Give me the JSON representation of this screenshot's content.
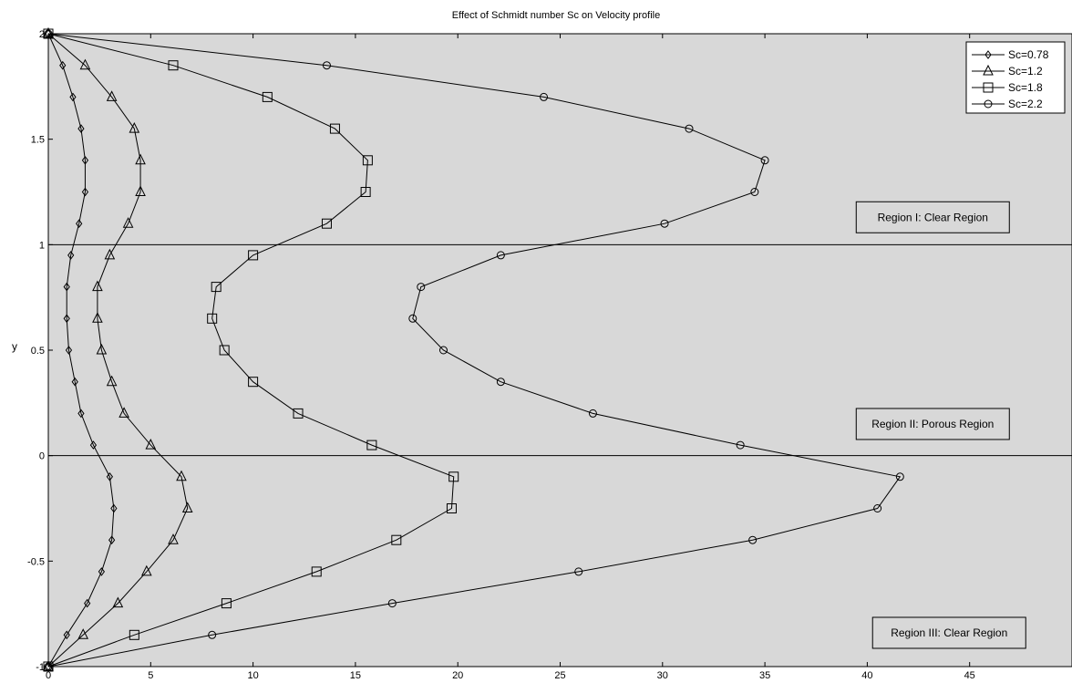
{
  "chart_data": {
    "type": "line",
    "title": "Effect of Schmidt number Sc on Velocity profile",
    "xlabel": "",
    "ylabel": "y",
    "xlim": [
      0,
      50
    ],
    "ylim": [
      -1,
      2
    ],
    "xticks": [
      "0",
      "5",
      "10",
      "15",
      "20",
      "25",
      "30",
      "35",
      "40",
      "45"
    ],
    "xtick_values": [
      0,
      5,
      10,
      15,
      20,
      25,
      30,
      35,
      40,
      45
    ],
    "yticks": [
      "-1",
      "-0.5",
      "0",
      "0.5",
      "1",
      "1.5",
      "2"
    ],
    "ytick_values": [
      -1,
      -0.5,
      0,
      0.5,
      1,
      1.5,
      2
    ],
    "grid": false,
    "background": "#d8d8d8",
    "line_color": "#000000",
    "legend_position": "top-right",
    "reference_lines_y": [
      0,
      1
    ],
    "annotations": [
      {
        "text": "Region I: Clear Region",
        "x": 43.2,
        "y": 1.13
      },
      {
        "text": "Region II: Porous Region",
        "x": 43.2,
        "y": 0.15
      },
      {
        "text": "Region III: Clear Region",
        "x": 44.0,
        "y": -0.84
      }
    ],
    "series": [
      {
        "name": "Sc=0.78",
        "marker": "diamond",
        "x": [
          0,
          0.7,
          1.2,
          1.6,
          1.8,
          1.8,
          1.5,
          1.1,
          0.9,
          0.9,
          1.0,
          1.3,
          1.6,
          2.2,
          3.0,
          3.2,
          3.1,
          2.6,
          1.9,
          0.9,
          0
        ],
        "y": [
          2,
          1.85,
          1.7,
          1.55,
          1.4,
          1.25,
          1.1,
          0.95,
          0.8,
          0.65,
          0.5,
          0.35,
          0.2,
          0.05,
          -0.1,
          -0.25,
          -0.4,
          -0.55,
          -0.7,
          -0.85,
          -1
        ]
      },
      {
        "name": "Sc=1.2",
        "marker": "triangle",
        "x": [
          0,
          1.8,
          3.1,
          4.2,
          4.5,
          4.5,
          3.9,
          3.0,
          2.4,
          2.4,
          2.6,
          3.1,
          3.7,
          5.0,
          6.5,
          6.8,
          6.1,
          4.8,
          3.4,
          1.7,
          0
        ],
        "y": [
          2,
          1.85,
          1.7,
          1.55,
          1.4,
          1.25,
          1.1,
          0.95,
          0.8,
          0.65,
          0.5,
          0.35,
          0.2,
          0.05,
          -0.1,
          -0.25,
          -0.4,
          -0.55,
          -0.7,
          -0.85,
          -1
        ]
      },
      {
        "name": "Sc=1.8",
        "marker": "square",
        "x": [
          0,
          6.1,
          10.7,
          14.0,
          15.6,
          15.5,
          13.6,
          10.0,
          8.2,
          8.0,
          8.6,
          10.0,
          12.2,
          15.8,
          19.8,
          19.7,
          17.0,
          13.1,
          8.7,
          4.2,
          0
        ],
        "y": [
          2,
          1.85,
          1.7,
          1.55,
          1.4,
          1.25,
          1.1,
          0.95,
          0.8,
          0.65,
          0.5,
          0.35,
          0.2,
          0.05,
          -0.1,
          -0.25,
          -0.4,
          -0.55,
          -0.7,
          -0.85,
          -1
        ]
      },
      {
        "name": "Sc=2.2",
        "marker": "circle",
        "x": [
          0,
          13.6,
          24.2,
          31.3,
          35.0,
          34.5,
          30.1,
          22.1,
          18.2,
          17.8,
          19.3,
          22.1,
          26.6,
          33.8,
          41.6,
          40.5,
          34.4,
          25.9,
          16.8,
          8.0,
          0
        ],
        "y": [
          2,
          1.85,
          1.7,
          1.55,
          1.4,
          1.25,
          1.1,
          0.95,
          0.8,
          0.65,
          0.5,
          0.35,
          0.2,
          0.05,
          -0.1,
          -0.25,
          -0.4,
          -0.55,
          -0.7,
          -0.85,
          -1
        ]
      }
    ]
  }
}
